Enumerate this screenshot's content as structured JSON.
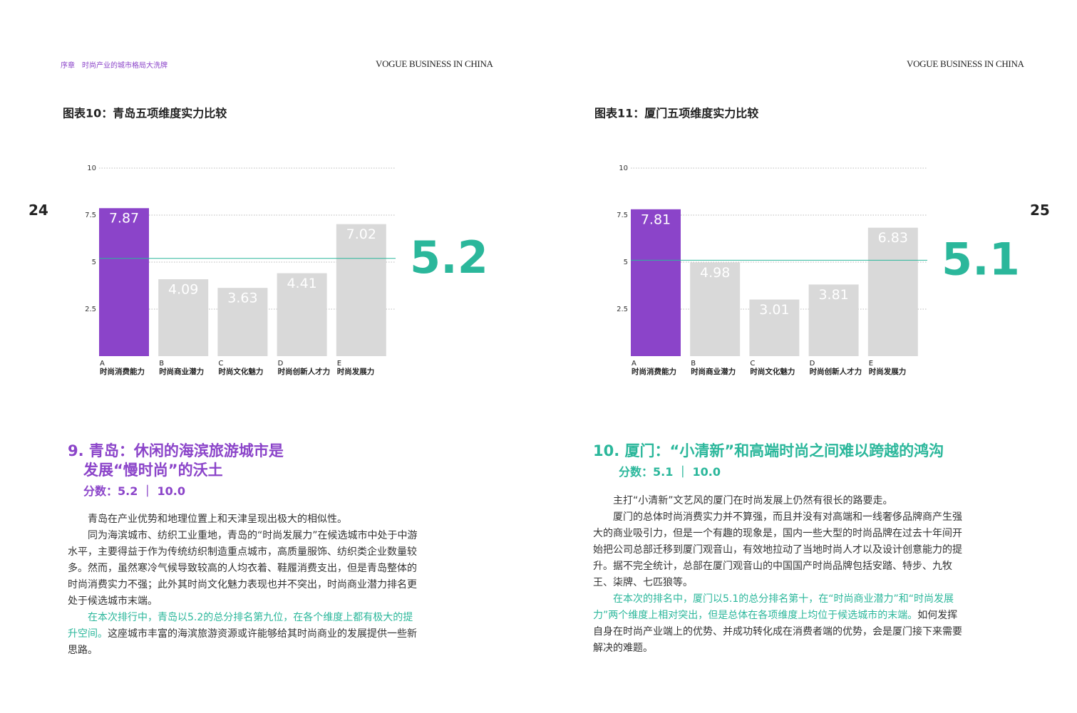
{
  "header": {
    "section": "序章",
    "section_title": "时尚产业的城市格局大洗牌",
    "brand_left": "VOGUE BUSINESS IN CHINA",
    "brand_right": "VOGUE BUSINESS IN CHINA",
    "page_left": "24",
    "page_right": "25"
  },
  "chart_data": [
    {
      "type": "bar",
      "title": "图表10：青岛五项维度实力比较",
      "categories": [
        "A",
        "B",
        "C",
        "D",
        "E"
      ],
      "category_names": [
        "时尚消费能力",
        "时尚商业潜力",
        "时尚文化魅力",
        "时尚创新人才力",
        "时尚发展力"
      ],
      "values": [
        7.87,
        4.09,
        3.63,
        4.41,
        7.02
      ],
      "colors": [
        "#8b44c9",
        "#d9d9d9",
        "#d9d9d9",
        "#d9d9d9",
        "#d9d9d9"
      ],
      "average": 5.2,
      "average_color": "#2bb79b",
      "ylim": [
        0,
        10
      ],
      "yticks": [
        2.5,
        5,
        7.5,
        10
      ],
      "grid": true
    },
    {
      "type": "bar",
      "title": "图表11：厦门五项维度实力比较",
      "categories": [
        "A",
        "B",
        "C",
        "D",
        "E"
      ],
      "category_names": [
        "时尚消费能力",
        "时尚商业潜力",
        "时尚文化魅力",
        "时尚创新人才力",
        "时尚发展力"
      ],
      "values": [
        7.81,
        4.98,
        3.01,
        3.81,
        6.83
      ],
      "colors": [
        "#8b44c9",
        "#d9d9d9",
        "#d9d9d9",
        "#d9d9d9",
        "#d9d9d9"
      ],
      "average": 5.1,
      "average_color": "#2bb79b",
      "ylim": [
        0,
        10
      ],
      "yticks": [
        2.5,
        5,
        7.5,
        10
      ],
      "grid": true
    }
  ],
  "sections": [
    {
      "title_lines": [
        "9. 青岛：休闲的海滨旅游城市是",
        "发展“慢时尚”的沃土"
      ],
      "title_color": "#8b44c9",
      "score": "分数：5.2 ｜ 10.0",
      "paragraphs": [
        [
          {
            "text": "青岛在产业优势和地理位置上和天津呈现出极大的相似性。"
          }
        ],
        [
          {
            "text": "同为海滨城市、纺织工业重地，青岛的“时尚发展力”在候选城市中处于中游水平，主要得益于作为传统纺织制造重点城市，高质量服饰、纺织类企业数量较多。然而，虽然寒冷气候导致较高的人均衣着、鞋履消费支出，但是青岛整体的时尚消费实力不强；此外其时尚文化魅力表现也并不突出，时尚商业潜力排名更处于候选城市末端。"
          }
        ],
        [
          {
            "text": "在本次排行中，青岛以5.2的总分排名第九位，在各个维度上都有极大的提升空间。",
            "highlight": true
          },
          {
            "text": "这座城市丰富的海滨旅游资源或许能够给其时尚商业的发展提供一些新思路。"
          }
        ]
      ]
    },
    {
      "title_lines": [
        "10. 厦门：“小清新”和高端时尚之间难以跨越的鸿沟"
      ],
      "title_color": "#2bb79b",
      "score": "分数：5.1 ｜ 10.0",
      "paragraphs": [
        [
          {
            "text": "主打“小清新”文艺风的厦门在时尚发展上仍然有很长的路要走。"
          }
        ],
        [
          {
            "text": "厦门的总体时尚消费实力并不算强，而且并没有对高端和一线奢侈品牌商产生强大的商业吸引力，但是一个有趣的现象是，国内一些大型的时尚品牌在过去十年间开始把公司总部迁移到厦门观音山，有效地拉动了当地时尚人才以及设计创意能力的提升。据不完全统计，总部在厦门观音山的中国国产时尚品牌包括安踏、特步、九牧王、柒牌、七匹狼等。"
          }
        ],
        [
          {
            "text": "在本次的排名中，厦门以5.1的总分排名第十，在“时尚商业潜力”和“时尚发展力”两个维度上相对突出，但是总体在各项维度上均位于候选城市的末端。",
            "highlight": true
          },
          {
            "text": "如何发挥自身在时尚产业端上的优势、并成功转化成在消费者端的优势，会是厦门接下来需要解决的难题。"
          }
        ]
      ]
    }
  ]
}
